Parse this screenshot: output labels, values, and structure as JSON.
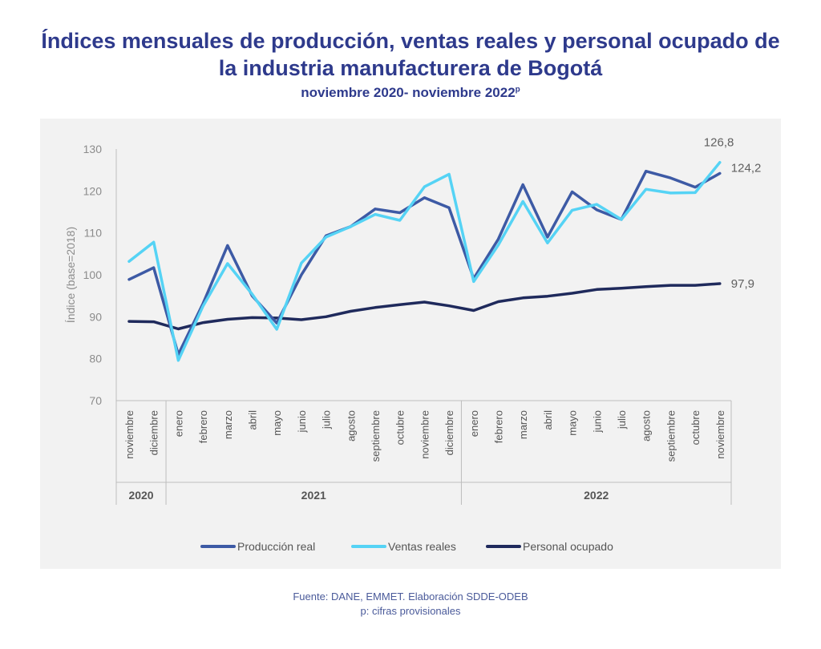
{
  "header": {
    "title_line1": "Índices mensuales de producción, ventas reales y personal ocupado de",
    "title_line2": "la industria manufacturera de Bogotá",
    "subtitle": "noviembre 2020- noviembre 2022",
    "subtitle_sup": "p"
  },
  "footer": {
    "source": "Fuente: DANE, EMMET. Elaboración SDDE-ODEB",
    "note": "p: cifras provisionales"
  },
  "colors": {
    "produccion": "#3d5aa5",
    "ventas": "#55d3f5",
    "personal": "#1f2a5c",
    "axis_text": "#8c8c8c",
    "title": "#2e3a8c"
  },
  "chart_data": {
    "type": "line",
    "ylabel": "Índice (base=2018)",
    "ylim": [
      70,
      130
    ],
    "yticks": [
      70,
      80,
      90,
      100,
      110,
      120,
      130
    ],
    "grid": false,
    "legend_position": "bottom",
    "categories": [
      "noviembre",
      "diciembre",
      "enero",
      "febrero",
      "marzo",
      "abril",
      "mayo",
      "junio",
      "julio",
      "agosto",
      "septiembre",
      "octubre",
      "noviembre",
      "diciembre",
      "enero",
      "febrero",
      "marzo",
      "abril",
      "mayo",
      "junio",
      "julio",
      "agosto",
      "septiembre",
      "octubre",
      "noviembre"
    ],
    "years": [
      {
        "label": "2020",
        "start": 0,
        "end": 1
      },
      {
        "label": "2021",
        "start": 2,
        "end": 13
      },
      {
        "label": "2022",
        "start": 14,
        "end": 24
      }
    ],
    "series": [
      {
        "name": "Producción real",
        "color": "#3d5aa5",
        "values": [
          98.9,
          101.7,
          81.0,
          93.1,
          107.0,
          95.0,
          88.5,
          100.0,
          109.3,
          111.5,
          115.7,
          114.8,
          118.4,
          116.0,
          99.1,
          108.5,
          121.5,
          109.0,
          119.8,
          115.5,
          113.2,
          124.7,
          123.1,
          120.9,
          124.2
        ]
      },
      {
        "name": "Ventas reales",
        "color": "#55d3f5",
        "values": [
          103.2,
          107.8,
          79.6,
          92.5,
          102.7,
          95.4,
          87.0,
          102.8,
          109.0,
          111.5,
          114.4,
          113.0,
          121.0,
          124.0,
          98.4,
          107.1,
          117.5,
          107.6,
          115.4,
          116.8,
          113.2,
          120.4,
          119.5,
          119.6,
          126.8
        ]
      },
      {
        "name": "Personal ocupado",
        "color": "#1f2a5c",
        "values": [
          88.9,
          88.8,
          87.1,
          88.6,
          89.4,
          89.8,
          89.7,
          89.3,
          90.0,
          91.3,
          92.2,
          92.9,
          93.5,
          92.6,
          91.5,
          93.6,
          94.5,
          94.9,
          95.6,
          96.5,
          96.8,
          97.2,
          97.5,
          97.5,
          97.9
        ]
      }
    ],
    "end_labels": [
      {
        "series": 1,
        "text": "126,8"
      },
      {
        "series": 0,
        "text": "124,2"
      },
      {
        "series": 2,
        "text": "97,9"
      }
    ]
  }
}
